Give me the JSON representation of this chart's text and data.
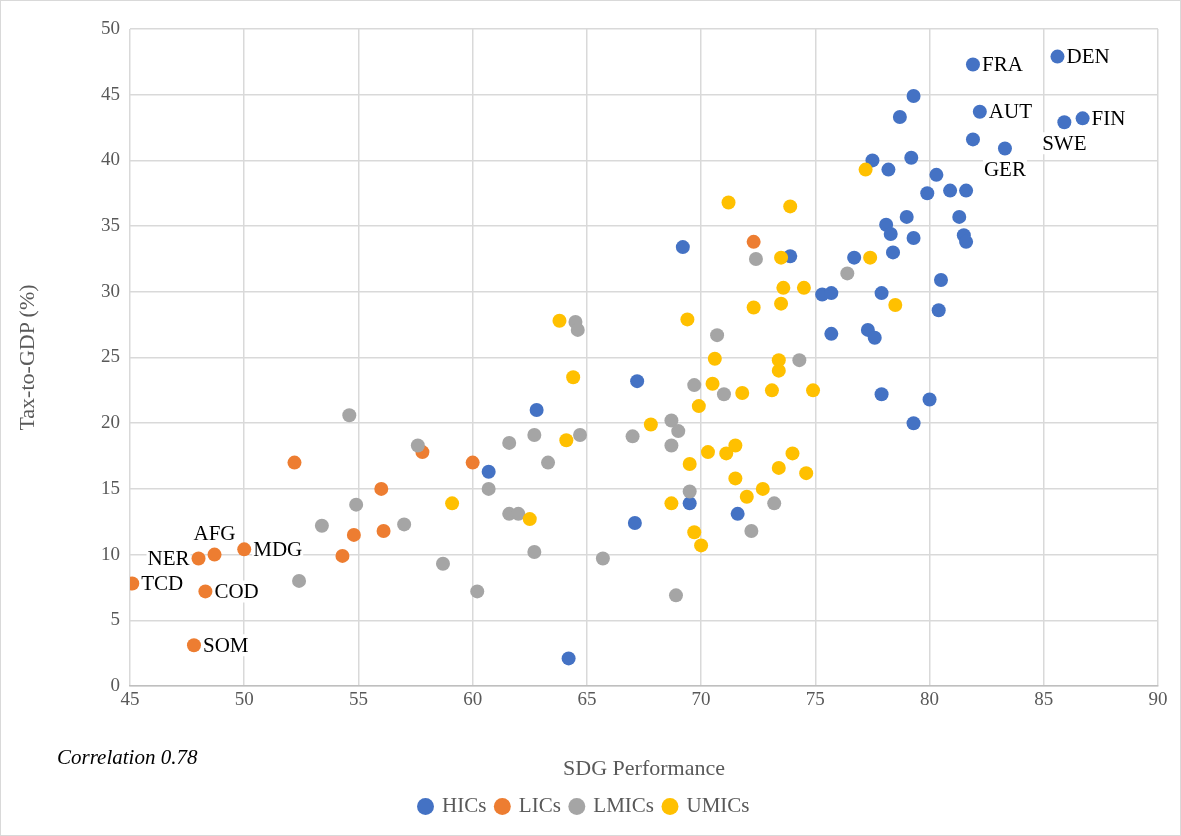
{
  "chart_data": {
    "type": "scatter",
    "xlabel": "SDG Performance",
    "ylabel": "Tax-to-GDP (%)",
    "xlim": [
      45,
      90
    ],
    "xticks": [
      45,
      50,
      55,
      60,
      65,
      70,
      75,
      80,
      85,
      90
    ],
    "ylim": [
      0,
      50
    ],
    "yticks": [
      0,
      5,
      10,
      15,
      20,
      25,
      30,
      35,
      40,
      45,
      50
    ],
    "grid": true,
    "legend": "bottom",
    "marker": "circle",
    "series": [
      {
        "name": "HICs",
        "color": "#4472c4",
        "x": [
          85.6,
          81.9,
          79.3,
          78.7,
          82.2,
          85.9,
          86.7,
          81.9,
          83.3,
          77.5,
          79.2,
          78.2,
          80.3,
          80.9,
          81.6,
          79.9,
          79.0,
          81.3,
          78.1,
          78.3,
          79.3,
          81.5,
          81.6,
          78.4,
          69.2,
          73.9,
          76.7,
          75.3,
          75.7,
          77.9,
          80.5,
          80.4,
          75.7,
          77.3,
          77.6,
          77.9,
          80.0,
          79.3,
          67.2,
          62.8,
          60.7,
          69.5,
          71.6,
          67.1,
          64.2
        ],
        "values": [
          47.9,
          47.3,
          44.9,
          43.3,
          43.7,
          42.9,
          43.2,
          41.6,
          40.9,
          40.0,
          40.2,
          39.3,
          38.9,
          37.7,
          37.7,
          37.5,
          35.7,
          35.7,
          35.1,
          34.4,
          34.1,
          34.3,
          33.8,
          33.0,
          33.4,
          32.7,
          32.6,
          29.8,
          29.9,
          29.9,
          30.9,
          28.6,
          26.8,
          27.1,
          26.5,
          22.2,
          21.8,
          20.0,
          23.2,
          21.0,
          16.3,
          13.9,
          13.1,
          12.4,
          2.1
        ]
      },
      {
        "name": "LICs",
        "color": "#ed7d31",
        "x": [
          45.1,
          48.0,
          48.7,
          50.0,
          48.3,
          47.8,
          52.2,
          56.0,
          57.8,
          60.0,
          54.8,
          56.1,
          54.3,
          72.3
        ],
        "values": [
          7.8,
          9.7,
          10.0,
          10.4,
          7.2,
          3.1,
          17.0,
          15.0,
          17.8,
          17.0,
          11.5,
          11.8,
          9.9,
          33.8
        ]
      },
      {
        "name": "LMICs",
        "color": "#a5a5a5",
        "x": [
          54.6,
          57.6,
          61.6,
          54.9,
          53.4,
          57.0,
          58.7,
          52.4,
          60.2,
          64.5,
          64.6,
          62.7,
          64.7,
          63.3,
          60.7,
          61.6,
          62.0,
          62.7,
          65.7,
          70.7,
          74.3,
          69.7,
          71.0,
          68.7,
          69.0,
          67.0,
          68.7,
          69.5,
          73.2,
          72.2,
          68.9,
          72.4,
          76.4
        ],
        "values": [
          20.6,
          18.3,
          18.5,
          13.8,
          12.2,
          12.3,
          9.3,
          8.0,
          7.2,
          27.7,
          27.1,
          19.1,
          19.1,
          17.0,
          15.0,
          13.1,
          13.1,
          10.2,
          9.7,
          26.7,
          24.8,
          22.9,
          22.2,
          20.2,
          19.4,
          19.0,
          18.3,
          14.8,
          13.9,
          11.8,
          6.9,
          32.5,
          31.4
        ]
      },
      {
        "name": "UMICs",
        "color": "#ffc000",
        "x": [
          71.2,
          73.9,
          77.4,
          73.5,
          77.2,
          78.5,
          73.6,
          74.5,
          72.3,
          73.5,
          69.4,
          70.6,
          73.4,
          73.4,
          70.5,
          71.8,
          73.1,
          74.9,
          69.9,
          67.8,
          63.8,
          64.4,
          64.1,
          62.5,
          69.5,
          70.3,
          71.1,
          71.5,
          71.5,
          73.4,
          74.0,
          74.6,
          72.7,
          72.0,
          68.7,
          69.7,
          70.0,
          59.1
        ],
        "values": [
          36.8,
          36.5,
          32.6,
          32.6,
          39.3,
          29.0,
          30.3,
          30.3,
          28.8,
          29.1,
          27.9,
          24.9,
          24.8,
          24.0,
          23.0,
          22.3,
          22.5,
          22.5,
          21.3,
          19.9,
          27.8,
          23.5,
          18.7,
          12.7,
          16.9,
          17.8,
          17.7,
          18.3,
          15.8,
          16.6,
          17.7,
          16.2,
          15.0,
          14.4,
          13.9,
          11.7,
          10.7,
          13.9
        ]
      }
    ],
    "annotations": [
      {
        "text": "DEN",
        "x": 85.6,
        "y": 47.9
      },
      {
        "text": "FRA",
        "x": 81.9,
        "y": 47.3
      },
      {
        "text": "AUT",
        "x": 82.2,
        "y": 43.7
      },
      {
        "text": "FIN",
        "x": 86.7,
        "y": 43.2
      },
      {
        "text": "SWE",
        "x": 85.9,
        "y": 42.9
      },
      {
        "text": "GER",
        "x": 83.3,
        "y": 40.9
      },
      {
        "text": "AFG",
        "x": 48.7,
        "y": 10.0
      },
      {
        "text": "NER",
        "x": 48.0,
        "y": 9.7
      },
      {
        "text": "MDG",
        "x": 50.0,
        "y": 10.4
      },
      {
        "text": "COD",
        "x": 48.3,
        "y": 7.2
      },
      {
        "text": "TCD",
        "x": 45.1,
        "y": 7.8
      },
      {
        "text": "SOM",
        "x": 47.8,
        "y": 3.1
      },
      "Correlation 0.78"
    ]
  }
}
